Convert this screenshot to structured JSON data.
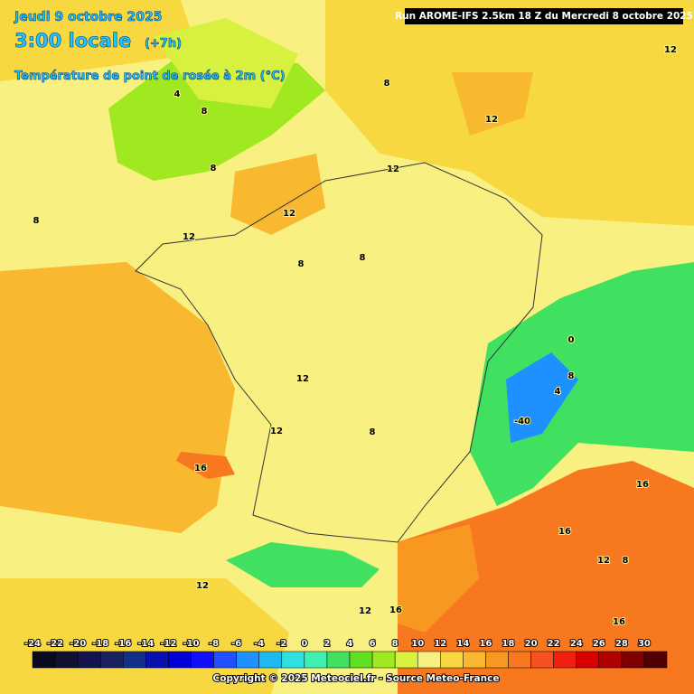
{
  "header": {
    "date": "Jeudi 9 octobre 2025",
    "time": "3:00 locale",
    "offset": "(+7h)",
    "variable": "Température de point de rosée à 2m (°C)",
    "run": "Run AROME-IFS 2.5km 18 Z du Mercredi 8 octobre 2025"
  },
  "map": {
    "contour_labels": [
      12,
      8,
      12,
      12,
      8,
      8,
      12,
      12,
      8,
      8,
      12,
      12,
      16,
      8,
      0,
      8,
      4,
      -40,
      16,
      16,
      12,
      8,
      16,
      12,
      12,
      16,
      4,
      8
    ]
  },
  "legend": {
    "labels": [
      -24,
      -22,
      -20,
      -18,
      -16,
      -14,
      -12,
      -10,
      -8,
      -6,
      -4,
      -2,
      0,
      2,
      4,
      6,
      8,
      10,
      12,
      14,
      16,
      18,
      20,
      22,
      24,
      26,
      28,
      30
    ],
    "colors": [
      "#0a0a1e",
      "#101030",
      "#141450",
      "#1a2060",
      "#10308a",
      "#0a10b0",
      "#0000d8",
      "#1010ff",
      "#2050ff",
      "#1e90ff",
      "#20b8f0",
      "#30e0e0",
      "#40f0b0",
      "#40e060",
      "#60e020",
      "#a0e820",
      "#d8f040",
      "#f8f080",
      "#f8d840",
      "#f8b830",
      "#f89820",
      "#f87820",
      "#f85020",
      "#f02010",
      "#d80000",
      "#b00000",
      "#800000",
      "#500000"
    ]
  },
  "footer": {
    "copyright": "Copyright © 2025 Meteociel.fr - Source Meteo-France"
  }
}
